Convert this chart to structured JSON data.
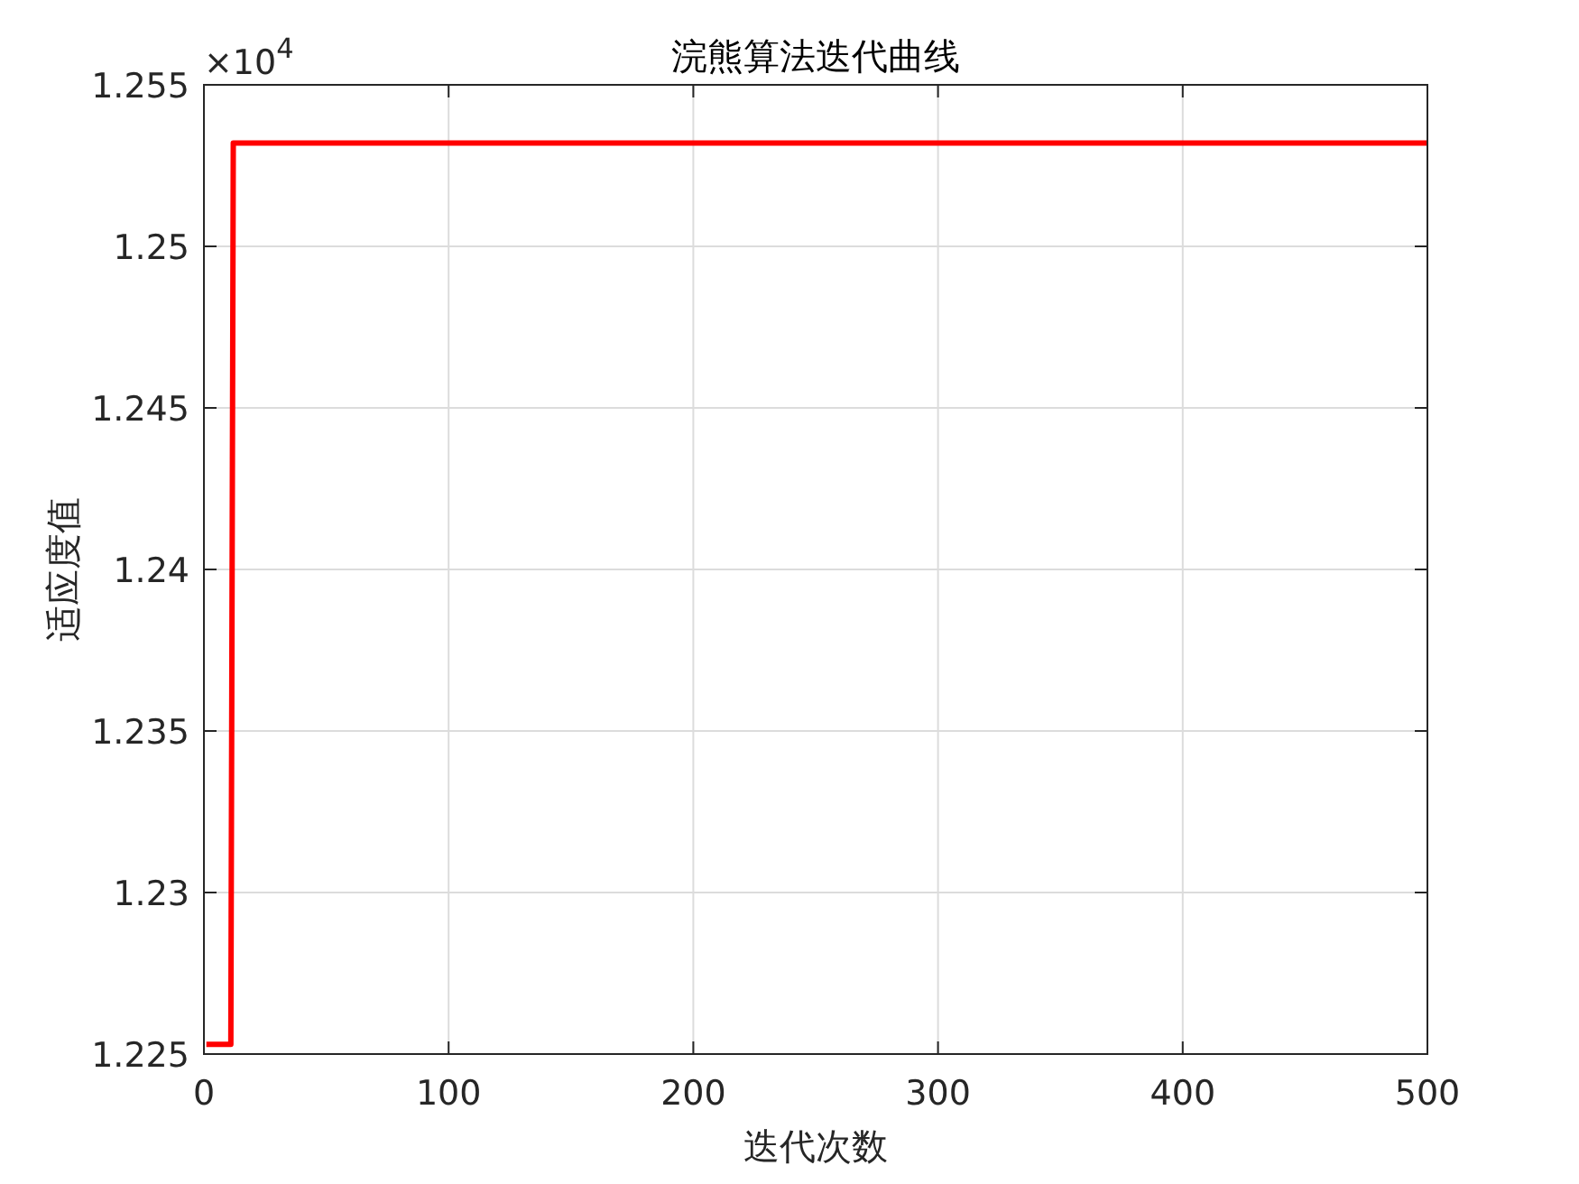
{
  "chart_data": {
    "type": "line",
    "title": "浣熊算法迭代曲线",
    "xlabel": "迭代次数",
    "ylabel": "适应度值",
    "x": [
      1,
      11,
      12,
      500
    ],
    "series": [
      {
        "color": "#ff0000",
        "values": [
          1.2253,
          1.2253,
          1.2532,
          1.2532
        ]
      }
    ],
    "xlim": [
      0,
      500
    ],
    "xticks": [
      0,
      100,
      200,
      300,
      400,
      500
    ],
    "ylim": [
      1.225,
      1.255
    ],
    "yticks": [
      1.225,
      1.23,
      1.235,
      1.24,
      1.245,
      1.25,
      1.255
    ],
    "annotations": [
      "×10$^{4}$"
    ],
    "grid": true,
    "marker": "none",
    "line_style": "solid"
  }
}
